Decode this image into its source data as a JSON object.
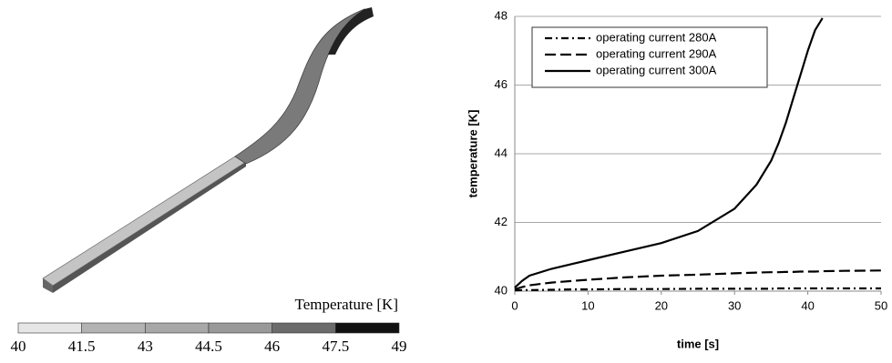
{
  "chart_data": [
    {
      "type": "colorbar",
      "title": "Temperature [K]",
      "ticks": [
        40,
        41.5,
        43,
        44.5,
        46,
        47.5,
        49
      ],
      "colors": [
        "#e6e6e6",
        "#b3b3b3",
        "#a8a8a8",
        "#999999",
        "#6b6b6b",
        "#111111"
      ]
    },
    {
      "type": "line",
      "xlabel": "time [s]",
      "ylabel": "temperature [K]",
      "x": [
        0,
        1,
        2,
        5,
        8,
        10,
        15,
        20,
        25,
        30,
        33,
        35,
        36,
        37,
        38,
        39,
        40,
        41,
        42,
        45,
        50
      ],
      "series": [
        {
          "name": "operating current 280A",
          "color": "#000000",
          "style": "dashdot",
          "values": [
            40.02,
            40.03,
            40.03,
            40.04,
            40.05,
            40.05,
            40.06,
            40.06,
            40.07,
            40.07,
            40.07,
            40.07,
            40.08,
            40.08,
            40.08,
            40.08,
            40.08,
            40.08,
            40.08,
            40.08,
            40.08
          ]
        },
        {
          "name": "operating current 290A",
          "color": "#000000",
          "style": "dash",
          "values": [
            40.05,
            40.12,
            40.17,
            40.25,
            40.3,
            40.33,
            40.4,
            40.45,
            40.48,
            40.52,
            40.54,
            40.55,
            40.55,
            40.56,
            40.56,
            40.57,
            40.57,
            40.57,
            40.58,
            40.59,
            40.6
          ]
        },
        {
          "name": "operating current 300A",
          "color": "#000000",
          "style": "solid",
          "values": [
            40.1,
            40.3,
            40.45,
            40.65,
            40.8,
            40.9,
            41.15,
            41.4,
            41.75,
            42.4,
            43.1,
            43.8,
            44.3,
            44.9,
            45.6,
            46.3,
            47.0,
            47.6,
            47.95,
            null,
            null
          ]
        }
      ],
      "xlim": [
        0,
        50
      ],
      "xticks": [
        0,
        10,
        20,
        30,
        40,
        50
      ],
      "ylim": [
        40,
        48
      ],
      "yticks": [
        40,
        42,
        44,
        46,
        48
      ],
      "grid": true
    }
  ]
}
